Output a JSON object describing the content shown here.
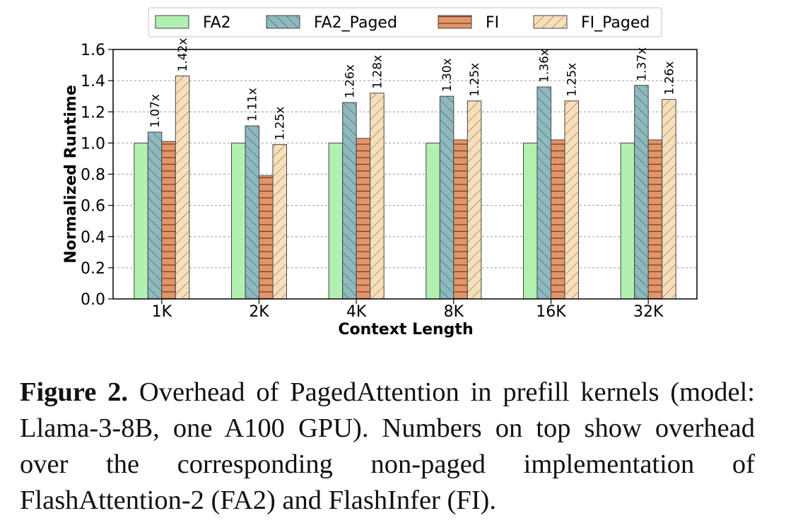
{
  "chart_data": {
    "type": "bar",
    "title": "",
    "xlabel": "Context Length",
    "ylabel": "Normalized Runtime",
    "ylim": [
      0,
      1.6
    ],
    "yticks": [
      "0.0",
      "0.2",
      "0.4",
      "0.6",
      "0.8",
      "1.0",
      "1.2",
      "1.4",
      "1.6"
    ],
    "categories": [
      "1K",
      "2K",
      "4K",
      "8K",
      "16K",
      "32K"
    ],
    "grid": "horizontal dashed",
    "legend_position": "top",
    "series": [
      {
        "name": "FA2",
        "values": [
          1.0,
          1.0,
          1.0,
          1.0,
          1.0,
          1.0
        ],
        "color": "#b2f0b2",
        "hatch": "none",
        "labels": []
      },
      {
        "name": "FA2_Paged",
        "values": [
          1.07,
          1.11,
          1.26,
          1.3,
          1.36,
          1.37
        ],
        "color": "#8fb9bd",
        "hatch": "backslash",
        "labels": [
          "1.07x",
          "1.11x",
          "1.26x",
          "1.30x",
          "1.36x",
          "1.37x"
        ]
      },
      {
        "name": "FI",
        "values": [
          1.01,
          0.79,
          1.03,
          1.02,
          1.02,
          1.02
        ],
        "color": "#e2956a",
        "hatch": "horizontal",
        "labels": []
      },
      {
        "name": "FI_Paged",
        "values": [
          1.43,
          0.99,
          1.32,
          1.27,
          1.27,
          1.28
        ],
        "color": "#f8dfbc",
        "hatch": "slash",
        "labels": [
          "1.42x",
          "1.25x",
          "1.28x",
          "1.25x",
          "1.25x",
          "1.26x"
        ]
      }
    ]
  },
  "caption": {
    "label": "Figure 2.",
    "text": " Overhead of PagedAttention in prefill kernels (model: Llama-3-8B, one A100 GPU). Numbers on top show overhead over the corresponding non-paged implementation of FlashAttention-2 (FA2) and FlashInfer (FI)."
  }
}
